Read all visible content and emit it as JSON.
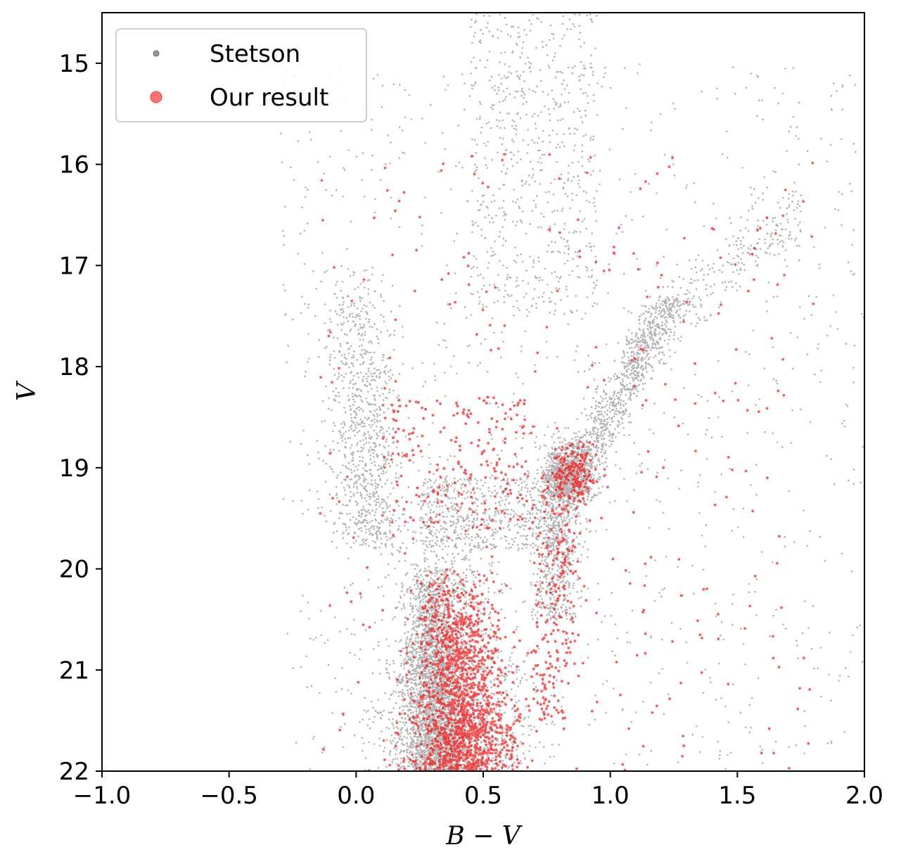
{
  "chart_data": {
    "type": "scatter",
    "title": "",
    "xlabel": "B − V",
    "ylabel": "V",
    "xlim": [
      -1.0,
      2.0
    ],
    "ylim": [
      22,
      14.5
    ],
    "y_inverted": true,
    "grid": false,
    "legend_position": "top-left",
    "x_ticks": [
      -1.0,
      -0.5,
      0.0,
      0.5,
      1.0,
      1.5,
      2.0
    ],
    "x_tick_labels": [
      "−1.0",
      "−0.5",
      "0.0",
      "0.5",
      "1.0",
      "1.5",
      "2.0"
    ],
    "y_ticks": [
      15,
      16,
      17,
      18,
      19,
      20,
      21,
      22
    ],
    "y_tick_labels": [
      "15",
      "16",
      "17",
      "18",
      "19",
      "20",
      "21",
      "22"
    ],
    "series": [
      {
        "name": "Stetson",
        "color": "#000000",
        "opacity": 0.3,
        "marker": "point",
        "distribution": [
          {
            "component": "main-sequence",
            "count": 2500,
            "x_center": 0.28,
            "y_range": [
              20.0,
              22.0
            ],
            "spread": 0.06
          },
          {
            "component": "main-sequence-halo",
            "count": 1500,
            "x_center": 0.35,
            "y_range": [
              19.5,
              22.0
            ],
            "spread": 0.14
          },
          {
            "component": "turnoff-subgiant",
            "count": 600,
            "x_range": [
              0.25,
              0.8
            ],
            "y_range": [
              19.1,
              19.8
            ]
          },
          {
            "component": "red-giant-branch",
            "count": 1500,
            "x_range": [
              0.75,
              1.3
            ],
            "y_range": [
              17.3,
              20.5
            ]
          },
          {
            "component": "red-clump",
            "count": 900,
            "x_center": 0.84,
            "y_center": 19.05,
            "spread": 0.05
          },
          {
            "component": "asymptotic-branch",
            "count": 300,
            "x_range": [
              1.05,
              1.75
            ],
            "y_range": [
              16.3,
              17.8
            ]
          },
          {
            "component": "blue-plume",
            "count": 900,
            "x_range": [
              -0.15,
              0.25
            ],
            "y_range": [
              17.0,
              19.8
            ]
          },
          {
            "component": "upper-field",
            "count": 600,
            "x_range": [
              0.45,
              0.95
            ],
            "y_range": [
              14.5,
              17.5
            ]
          },
          {
            "component": "field",
            "count": 1100,
            "x_range": [
              -0.3,
              2.0
            ],
            "y_range": [
              15.0,
              22.0
            ]
          }
        ]
      },
      {
        "name": "Our result",
        "color": "#ff0000",
        "opacity": 0.65,
        "marker": "point",
        "distribution": [
          {
            "component": "main-sequence",
            "count": 1500,
            "x_center": 0.38,
            "y_range": [
              20.0,
              22.0
            ],
            "spread": 0.09
          },
          {
            "component": "red-clump",
            "count": 160,
            "x_center": 0.86,
            "y_center": 19.05,
            "spread": 0.05
          },
          {
            "component": "red-giant-branch",
            "count": 260,
            "x_range": [
              0.72,
              0.95
            ],
            "y_range": [
              19.0,
              21.5
            ]
          },
          {
            "component": "turnoff-subgiant",
            "count": 200,
            "x_range": [
              0.1,
              0.7
            ],
            "y_range": [
              18.3,
              19.6
            ]
          },
          {
            "component": "field",
            "count": 300,
            "x_range": [
              -0.15,
              1.8
            ],
            "y_range": [
              15.9,
              22.0
            ]
          }
        ]
      }
    ]
  }
}
